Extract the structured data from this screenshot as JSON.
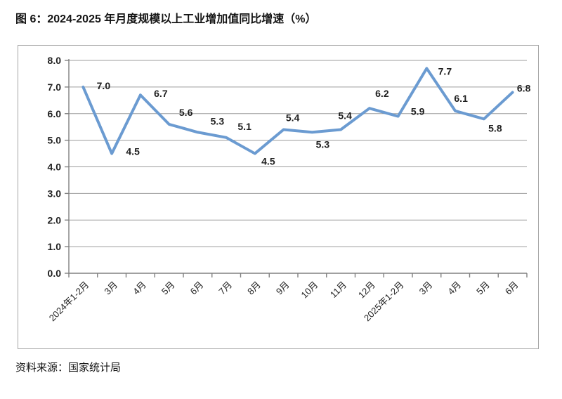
{
  "figure": {
    "title": "图 6：2024-2025 年月度规模以上工业增加值同比增速（%）",
    "source": "资料来源：国家统计局"
  },
  "colors": {
    "line": "#6B9BD1",
    "grid": "#9c9c9c",
    "axis": "#808080",
    "border": "#a6a6a6",
    "text": "#1f1f1f"
  },
  "chart_data": {
    "type": "line",
    "title": "图 6：2024-2025 年月度规模以上工业增加值同比增速（%）",
    "categories": [
      "2024年1-2月",
      "3月",
      "4月",
      "5月",
      "6月",
      "7月",
      "8月",
      "9月",
      "10月",
      "11月",
      "12月",
      "2025年1-2月",
      "3月",
      "4月",
      "5月",
      "6月"
    ],
    "values": [
      7.0,
      4.5,
      6.7,
      5.6,
      5.3,
      5.1,
      4.5,
      5.4,
      5.3,
      5.4,
      6.2,
      5.9,
      7.7,
      6.1,
      5.8,
      6.8
    ],
    "point_labels": [
      "7.0",
      "4.5",
      "6.7",
      "5.6",
      "5.3",
      "5.1",
      "4.5",
      "5.4",
      "5.3",
      "5.4",
      "6.2",
      "5.9",
      "7.7",
      "6.1",
      "5.8",
      "6.8"
    ],
    "label_dx": [
      29,
      30,
      29,
      24,
      28,
      26,
      19,
      13,
      15,
      6,
      18,
      28,
      26,
      8,
      16,
      16
    ],
    "label_dy": [
      -2,
      -3,
      -2,
      -17,
      -16,
      -16,
      11,
      -17,
      17,
      -20,
      -21,
      -7,
      4,
      -18,
      13,
      -6
    ],
    "xlabel": "",
    "ylabel": "",
    "ylim": [
      0,
      8
    ],
    "ytick_step": 1,
    "ytick_labels": [
      "0.0",
      "1.0",
      "2.0",
      "3.0",
      "4.0",
      "5.0",
      "6.0",
      "7.0",
      "8.0"
    ],
    "grid": true,
    "legend_position": "none",
    "x_label_rotation": -45
  }
}
